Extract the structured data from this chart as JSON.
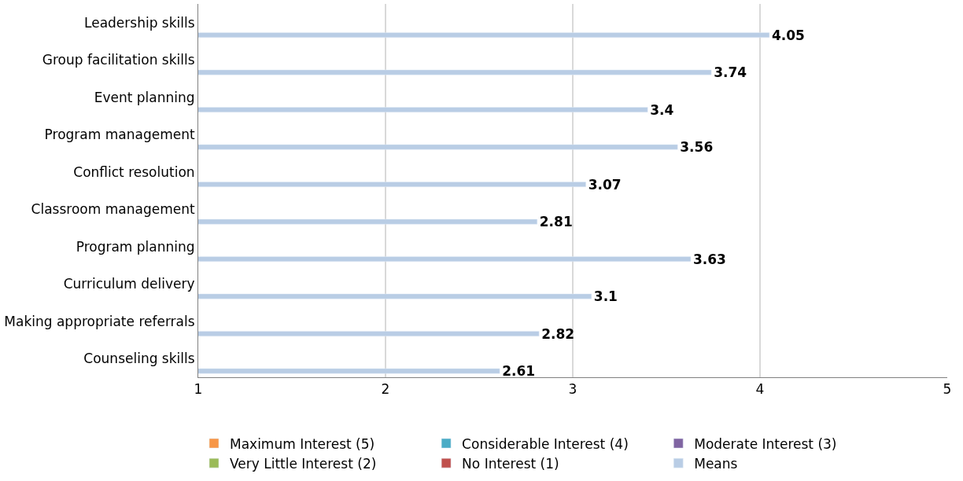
{
  "chart_data": {
    "type": "bar",
    "orientation": "horizontal",
    "categories": [
      "Leadership skills",
      "Group facilitation skills",
      "Event planning",
      "Program management",
      "Conflict resolution",
      "Classroom management",
      "Program planning",
      "Curriculum delivery",
      "Making appropriate referrals",
      "Counseling skills"
    ],
    "series": [
      {
        "name": "Maximum Interest (5)",
        "color": "#f79646",
        "values": [
          null,
          null,
          null,
          null,
          null,
          null,
          null,
          null,
          null,
          null
        ]
      },
      {
        "name": "Considerable Interest (4)",
        "color": "#4bacc6",
        "values": [
          null,
          null,
          null,
          null,
          null,
          null,
          null,
          null,
          null,
          null
        ]
      },
      {
        "name": "Moderate Interest (3)",
        "color": "#8064a2",
        "values": [
          null,
          null,
          null,
          null,
          null,
          null,
          null,
          null,
          null,
          null
        ]
      },
      {
        "name": "Very Little Interest (2)",
        "color": "#9bbb59",
        "values": [
          null,
          null,
          null,
          null,
          null,
          null,
          null,
          null,
          null,
          null
        ]
      },
      {
        "name": "No Interest (1)",
        "color": "#c0504d",
        "values": [
          null,
          null,
          null,
          null,
          null,
          null,
          null,
          null,
          null,
          null
        ]
      },
      {
        "name": "Means",
        "color": "#b9cde5",
        "values": [
          4.05,
          3.74,
          3.4,
          3.56,
          3.07,
          2.81,
          3.63,
          3.1,
          2.82,
          2.61
        ]
      }
    ],
    "xlim": [
      1,
      5
    ],
    "xticks": [
      1,
      2,
      3,
      4,
      5
    ],
    "grid": "x",
    "legend": "bottom",
    "data_labels": true
  }
}
